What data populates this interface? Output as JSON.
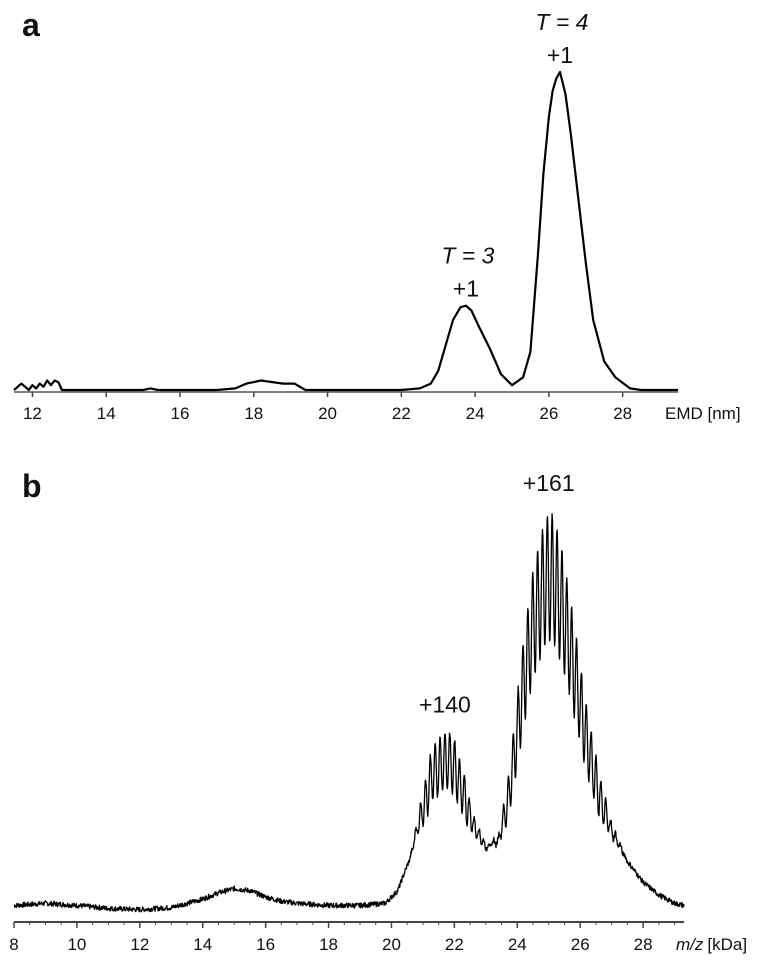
{
  "chart_data": [
    {
      "panel_label": "a",
      "type": "line",
      "xlabel": "EMD [nm]",
      "xlim": [
        11.5,
        29.5
      ],
      "ylim": [
        0,
        1.0
      ],
      "xticks": [
        12,
        14,
        16,
        18,
        20,
        22,
        24,
        26,
        28
      ],
      "x": [
        11.5,
        11.7,
        11.9,
        12.0,
        12.1,
        12.2,
        12.3,
        12.4,
        12.5,
        12.6,
        12.7,
        12.8,
        13.0,
        14.0,
        15.0,
        15.2,
        15.4,
        17.0,
        17.5,
        17.8,
        18.0,
        18.2,
        18.5,
        18.8,
        19.1,
        19.4,
        21.0,
        22.0,
        22.5,
        22.8,
        23.0,
        23.2,
        23.4,
        23.6,
        23.75,
        23.9,
        24.1,
        24.4,
        24.7,
        25.0,
        25.3,
        25.5,
        25.7,
        25.85,
        26.0,
        26.1,
        26.2,
        26.3,
        26.45,
        26.6,
        26.8,
        27.0,
        27.2,
        27.5,
        27.8,
        28.2,
        28.5,
        29.5
      ],
      "series": [
        {
          "values": [
            0.0,
            0.02,
            0.0,
            0.015,
            0.005,
            0.02,
            0.01,
            0.03,
            0.015,
            0.03,
            0.025,
            0.0,
            0.0,
            0.0,
            0.0,
            0.005,
            0.0,
            0.0,
            0.005,
            0.02,
            0.025,
            0.03,
            0.025,
            0.02,
            0.02,
            0.0,
            0.0,
            0.0,
            0.005,
            0.02,
            0.06,
            0.14,
            0.22,
            0.26,
            0.265,
            0.25,
            0.2,
            0.13,
            0.05,
            0.015,
            0.04,
            0.12,
            0.42,
            0.68,
            0.86,
            0.94,
            0.98,
            1.0,
            0.93,
            0.8,
            0.6,
            0.4,
            0.22,
            0.09,
            0.04,
            0.005,
            0.0,
            0.0
          ]
        }
      ],
      "annotations": [
        {
          "x": 23.75,
          "italic": "T = 3",
          "charge": "+1"
        },
        {
          "x": 26.3,
          "italic": "T = 4",
          "charge": "+1"
        }
      ]
    },
    {
      "panel_label": "b",
      "type": "line",
      "xlabel_italic": "m/z",
      "xlabel_unit": "[kDa]",
      "xlim": [
        8,
        29.3
      ],
      "ylim": [
        0,
        1.0
      ],
      "xticks": [
        8,
        10,
        12,
        14,
        16,
        18,
        20,
        22,
        24,
        26,
        28
      ],
      "envelope": {
        "x": [
          8.0,
          9.0,
          10.0,
          11.0,
          12.0,
          13.0,
          14.0,
          14.5,
          15.0,
          15.5,
          16.0,
          16.5,
          17.0,
          18.0,
          19.0,
          19.8,
          20.2,
          20.6,
          21.0,
          21.3,
          21.6,
          21.8,
          22.0,
          22.3,
          22.6,
          23.0,
          23.4,
          23.7,
          24.0,
          24.2,
          24.5,
          24.8,
          25.0,
          25.2,
          25.5,
          25.8,
          26.2,
          26.6,
          27.0,
          27.5,
          28.0,
          28.5,
          29.0,
          29.3
        ],
        "values": [
          0.025,
          0.03,
          0.025,
          0.018,
          0.015,
          0.02,
          0.04,
          0.055,
          0.065,
          0.06,
          0.045,
          0.035,
          0.03,
          0.025,
          0.025,
          0.03,
          0.06,
          0.14,
          0.3,
          0.4,
          0.43,
          0.44,
          0.42,
          0.34,
          0.24,
          0.17,
          0.19,
          0.32,
          0.52,
          0.66,
          0.82,
          0.92,
          0.96,
          0.94,
          0.84,
          0.7,
          0.5,
          0.34,
          0.22,
          0.13,
          0.08,
          0.05,
          0.03,
          0.025
        ]
      },
      "fine_structure": {
        "spacing_kda": 0.155,
        "modulation_depth": 0.32,
        "noise": 0.006
      },
      "annotations": [
        {
          "x": 21.7,
          "charge": "+140"
        },
        {
          "x": 25.0,
          "charge": "+161"
        }
      ]
    }
  ]
}
